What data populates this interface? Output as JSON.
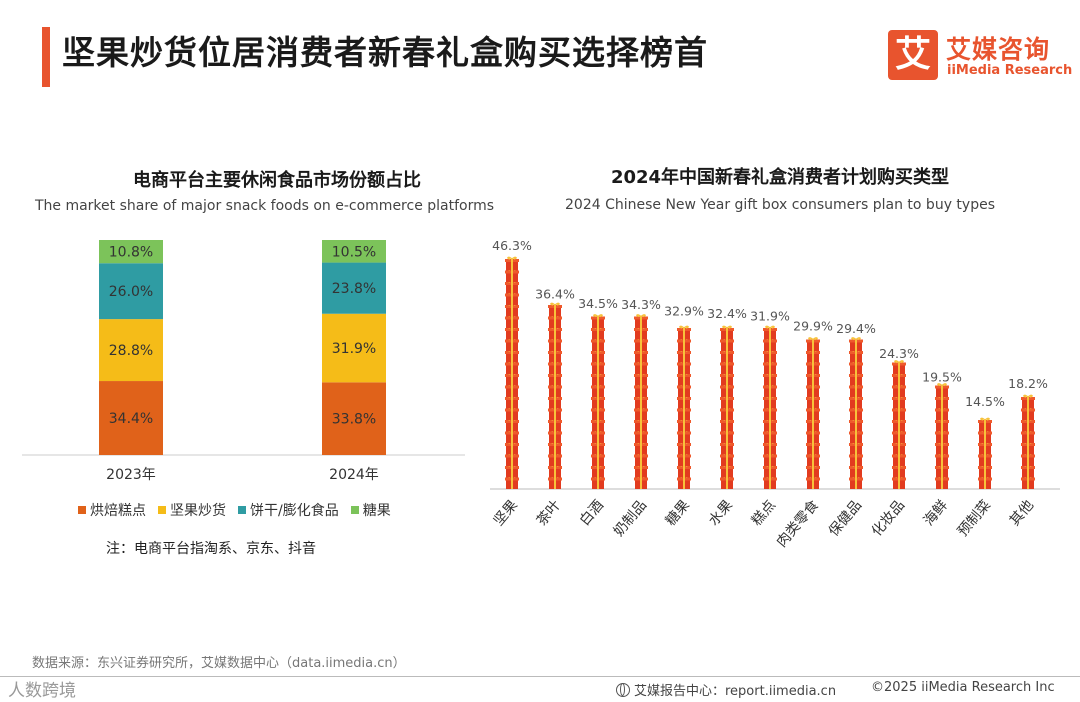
{
  "header": {
    "title": "坚果炒货位居消费者新春礼盒购买选择榜首",
    "logo_mark": "艾",
    "logo_cn": "艾媒咨询",
    "logo_en": "iiMedia Research"
  },
  "left_chart": {
    "title_cn": "电商平台主要休闲食品市场份额占比",
    "title_en": "The market share of major snack foods on e-commerce platforms",
    "legend": [
      {
        "label": "烘焙糕点",
        "color": "#e0621a"
      },
      {
        "label": "坚果炒货",
        "color": "#f5bc18"
      },
      {
        "label": "饼干/膨化食品",
        "color": "#2f9ca3"
      },
      {
        "label": "糖果",
        "color": "#7cc35a"
      }
    ],
    "note": "注：电商平台指淘系、京东、抖音"
  },
  "right_chart": {
    "title_cn": "2024年中国新春礼盒消费者计划购买类型",
    "title_en": "2024 Chinese New Year gift box consumers plan to buy types"
  },
  "chart_data": [
    {
      "type": "bar",
      "stacked": true,
      "title": "电商平台主要休闲食品市场份额占比",
      "subtitle": "The market share of major snack foods on e-commerce platforms",
      "categories": [
        "2023年",
        "2024年"
      ],
      "series": [
        {
          "name": "烘焙糕点",
          "values": [
            34.4,
            33.8
          ],
          "labels": [
            "34.4%",
            "33.8%"
          ]
        },
        {
          "name": "坚果炒货",
          "values": [
            28.8,
            31.9
          ],
          "labels": [
            "28.8%",
            "31.9%"
          ]
        },
        {
          "name": "饼干/膨化食品",
          "values": [
            26.0,
            23.8
          ],
          "labels": [
            "26.0%",
            "23.8%"
          ]
        },
        {
          "name": "糖果",
          "values": [
            10.8,
            10.5
          ],
          "labels": [
            "10.8%",
            "10.5%"
          ]
        }
      ],
      "legend_position": "bottom",
      "ylim": [
        0,
        100
      ]
    },
    {
      "type": "bar",
      "title": "2024年中国新春礼盒消费者计划购买类型",
      "subtitle": "2024 Chinese New Year gift box consumers plan to buy types",
      "categories": [
        "坚果",
        "茶叶",
        "白酒",
        "奶制品",
        "糖果",
        "水果",
        "糕点",
        "肉类零食",
        "保健品",
        "化妆品",
        "海鲜",
        "预制菜",
        "其他"
      ],
      "values": [
        46.3,
        36.4,
        34.5,
        34.3,
        32.9,
        32.4,
        31.9,
        29.9,
        29.4,
        24.3,
        19.5,
        14.5,
        18.2
      ],
      "value_labels": [
        "46.3%",
        "36.4%",
        "34.5%",
        "34.3%",
        "32.9%",
        "32.4%",
        "31.9%",
        "29.9%",
        "29.4%",
        "24.3%",
        "19.5%",
        "14.5%",
        "18.2%"
      ],
      "ylim": [
        0,
        50
      ],
      "bar_style": "stacked gift-box icons"
    }
  ],
  "footer": {
    "source": "数据来源：东兴证券研究所，艾媒数据中心（data.iimedia.cn）",
    "watermark": "人数跨境",
    "report": "艾媒报告中心：report.iimedia.cn",
    "copyright": "©2025  iiMedia Research Inc"
  }
}
